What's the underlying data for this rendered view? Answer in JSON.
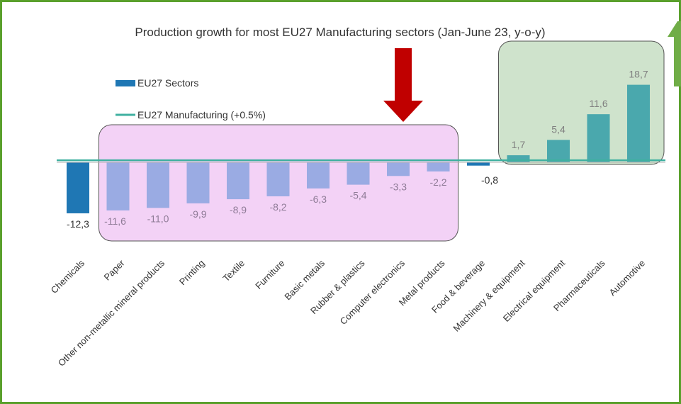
{
  "chart_data": {
    "type": "bar",
    "title": "Production growth for most EU27 Manufacturing sectors (Jan-June 23, y-o-y)",
    "categories": [
      "Chemicals",
      "Paper",
      "Other non-metallic mineral products",
      "Printing",
      "Textile",
      "Furniture",
      "Basic metals",
      "Rubber & plastics",
      "Computer electronics",
      "Metal products",
      "Food & beverage",
      "Machinery & equipment",
      "Electrical equipment",
      "Pharmaceuticals",
      "Automotive"
    ],
    "series": [
      {
        "name": "EU27 Sectors",
        "values": [
          -12.3,
          -11.6,
          -11.0,
          -9.9,
          -8.9,
          -8.2,
          -6.3,
          -5.4,
          -3.3,
          -2.2,
          -0.8,
          1.7,
          5.4,
          11.6,
          18.7
        ],
        "labels": [
          "-12,3",
          "-11,6",
          "-11,0",
          "-9,9",
          "-8,9",
          "-8,2",
          "-6,3",
          "-5,4",
          "-3,3",
          "-2,2",
          "-0,8",
          "1,7",
          "5,4",
          "11,6",
          "18,7"
        ]
      },
      {
        "name": "EU27 Manufacturing (+0.5%)",
        "type": "line",
        "value": 0.5
      }
    ],
    "ylim": [
      -13,
      20
    ],
    "grid": false,
    "legend": "top-left",
    "highlights": [
      {
        "group": "declining",
        "color": "#f3d2f6",
        "from_category": "Paper",
        "to_category": "Metal products"
      },
      {
        "group": "growing",
        "color": "#cfe3cc",
        "from_category": "Machinery & equipment",
        "to_category": "Automotive"
      }
    ],
    "arrows": [
      {
        "direction": "down",
        "color": "#c00000"
      },
      {
        "direction": "up",
        "color": "#70ad47"
      }
    ],
    "colors": {
      "frame": "#5aa02c",
      "bar_primary": "#1f77b4",
      "bar_declining": "#9aabe3",
      "bar_growing": "#4aa8ad",
      "manufacturing_line": "#3fb0a0",
      "text": "#333333",
      "label_muted": "#8f7c97"
    }
  }
}
